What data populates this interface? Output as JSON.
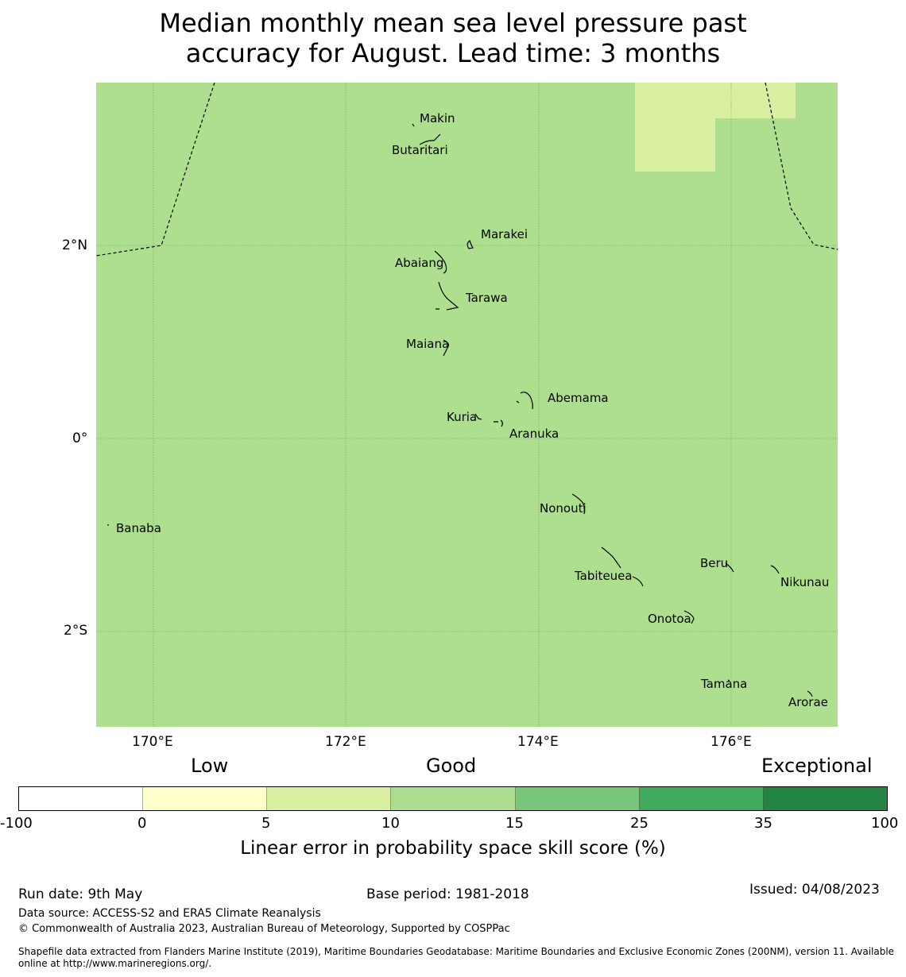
{
  "title": {
    "line1": "Median monthly mean sea level pressure past",
    "line2": "accuracy for August. Lead time: 3 months"
  },
  "map": {
    "region": "Gilbert Islands, Kiribati",
    "background_color": "#addf8e",
    "highlight_color": "#d9f0a3",
    "lon_ticks": [
      "170°E",
      "172°E",
      "174°E",
      "176°E"
    ],
    "lat_ticks": [
      "2°N",
      "0°",
      "2°S"
    ],
    "places": [
      {
        "id": "makin",
        "name": "Makin"
      },
      {
        "id": "butaritari",
        "name": "Butaritari"
      },
      {
        "id": "marakei",
        "name": "Marakei"
      },
      {
        "id": "abaiang",
        "name": "Abaiang"
      },
      {
        "id": "tarawa",
        "name": "Tarawa"
      },
      {
        "id": "maiana",
        "name": "Maiana"
      },
      {
        "id": "abemama",
        "name": "Abemama"
      },
      {
        "id": "kuria",
        "name": "Kuria"
      },
      {
        "id": "aranuka",
        "name": "Aranuka"
      },
      {
        "id": "nonouti",
        "name": "Nonouti"
      },
      {
        "id": "banaba",
        "name": "Banaba"
      },
      {
        "id": "beru",
        "name": "Beru"
      },
      {
        "id": "tabiteuea",
        "name": "Tabiteuea"
      },
      {
        "id": "nikunau",
        "name": "Nikunau"
      },
      {
        "id": "onotoa",
        "name": "Onotoa"
      },
      {
        "id": "tamana",
        "name": "Tamana"
      },
      {
        "id": "arorae",
        "name": "Arorae"
      }
    ]
  },
  "legend": {
    "category_low": "Low",
    "category_good": "Good",
    "category_exceptional": "Exceptional",
    "colors": [
      "#ffffff",
      "#ffffcc",
      "#d9f0a3",
      "#addd8e",
      "#78c679",
      "#41ab5d",
      "#238443"
    ],
    "ticks": [
      "-100",
      "0",
      "5",
      "10",
      "15",
      "25",
      "35",
      "100"
    ],
    "label": "Linear error in probability space skill score (%)"
  },
  "footer": {
    "run_date": "Run date: 9th May",
    "base_period": "Base period: 1981-2018",
    "issued": "Issued: 04/08/2023",
    "data_source": "Data source: ACCESS-S2 and ERA5 Climate Reanalysis",
    "copyright": "© Commonwealth of Australia 2023, Australian Bureau of Meteorology, Supported by COSPPac",
    "shapefile_line1": "Shapefile data extracted from Flanders Marine Institute (2019), Maritime Boundaries Geodatabase: Maritime Boundaries and Exclusive Economic Zones (200NM), version 11. Available",
    "shapefile_line2": "online at http://www.marineregions.org/."
  }
}
